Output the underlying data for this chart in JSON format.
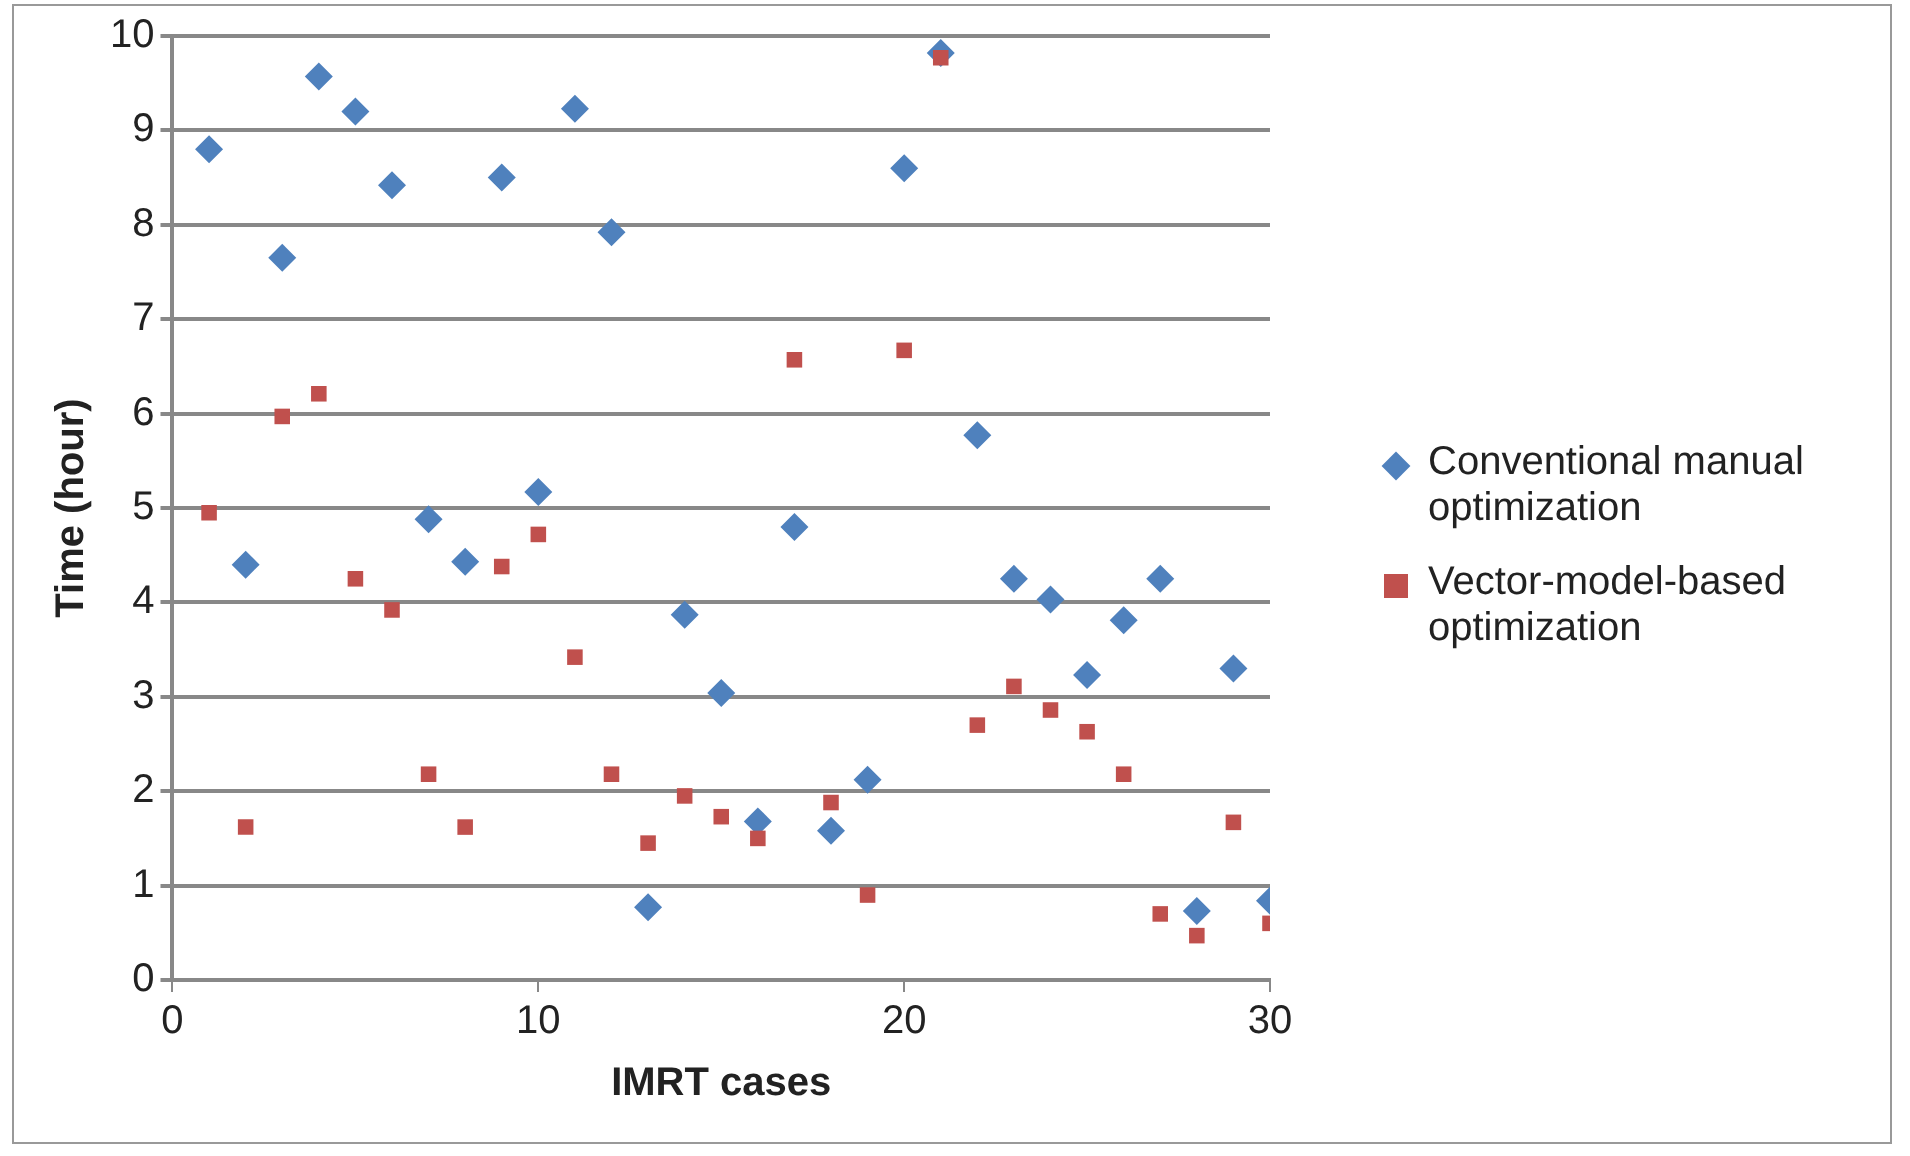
{
  "chart_data": {
    "type": "scatter",
    "xlabel": "IMRT cases",
    "ylabel": "Time (hour)",
    "x": [
      1,
      2,
      3,
      4,
      5,
      6,
      7,
      8,
      9,
      10,
      11,
      12,
      13,
      14,
      15,
      16,
      17,
      18,
      19,
      20,
      21,
      22,
      23,
      24,
      25,
      26,
      27,
      28,
      29,
      30
    ],
    "series": [
      {
        "name": "Conventional manual optimization",
        "color": "#4f81bd",
        "marker": "diamond",
        "values": [
          8.8,
          4.4,
          7.65,
          9.57,
          9.2,
          8.42,
          4.88,
          4.43,
          8.5,
          5.17,
          9.23,
          7.92,
          0.77,
          3.87,
          3.04,
          1.68,
          4.8,
          1.58,
          2.12,
          8.6,
          9.82,
          5.77,
          4.25,
          4.03,
          3.23,
          3.81,
          4.25,
          0.73,
          3.3,
          0.84
        ]
      },
      {
        "name": "Vector-model-based optimization",
        "color": "#c0504d",
        "marker": "square",
        "values": [
          4.95,
          1.62,
          5.97,
          6.21,
          4.25,
          3.92,
          2.18,
          1.62,
          4.38,
          4.72,
          3.42,
          2.18,
          1.45,
          1.95,
          1.73,
          1.5,
          6.57,
          1.88,
          0.9,
          6.67,
          9.77,
          2.7,
          3.11,
          2.86,
          2.63,
          2.18,
          0.7,
          0.47,
          1.67,
          0.6
        ]
      }
    ],
    "xlim": [
      0,
      30
    ],
    "xticks": [
      0,
      10,
      20,
      30
    ],
    "ylim": [
      0,
      10
    ],
    "yticks": [
      0,
      1,
      2,
      3,
      4,
      5,
      6,
      7,
      8,
      9,
      10
    ],
    "grid": "y",
    "legend": "right"
  }
}
